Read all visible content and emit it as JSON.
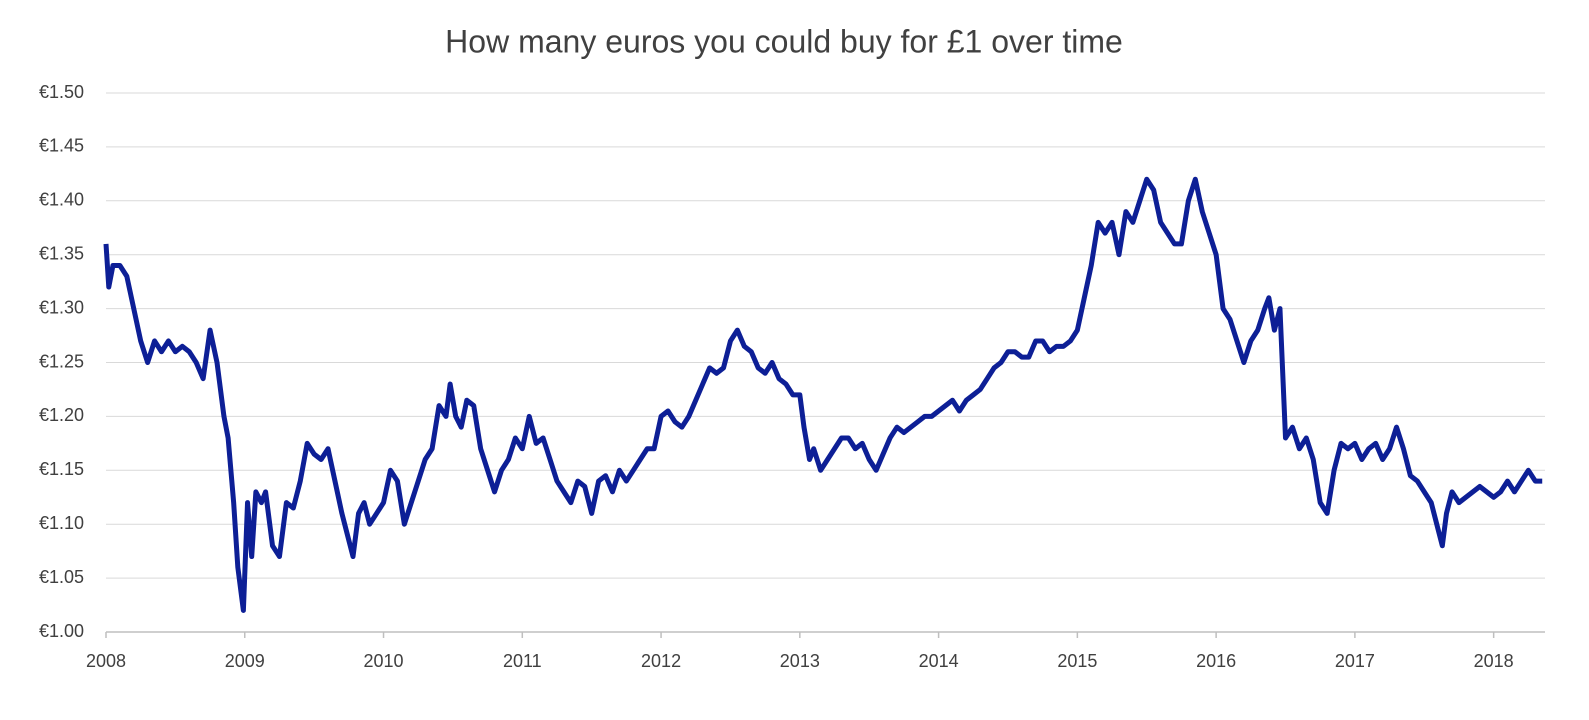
{
  "chart_data": {
    "type": "line",
    "title": "How many euros you could buy for £1 over time",
    "color": "#0d1f96",
    "grid": true,
    "xlim": [
      2008,
      2018.37
    ],
    "xticks": [
      2008,
      2009,
      2010,
      2011,
      2012,
      2013,
      2014,
      2015,
      2016,
      2017,
      2018
    ],
    "ylim": [
      1.0,
      1.5
    ],
    "yticks": [
      {
        "value": 1.0,
        "label": "€1.00"
      },
      {
        "value": 1.05,
        "label": "€1.05"
      },
      {
        "value": 1.1,
        "label": "€1.10"
      },
      {
        "value": 1.15,
        "label": "€1.15"
      },
      {
        "value": 1.2,
        "label": "€1.20"
      },
      {
        "value": 1.25,
        "label": "€1.25"
      },
      {
        "value": 1.3,
        "label": "€1.30"
      },
      {
        "value": 1.35,
        "label": "€1.35"
      },
      {
        "value": 1.4,
        "label": "€1.40"
      },
      {
        "value": 1.45,
        "label": "€1.45"
      },
      {
        "value": 1.5,
        "label": "€1.50"
      }
    ],
    "x": [
      2008.0,
      2008.02,
      2008.05,
      2008.1,
      2008.15,
      2008.2,
      2008.25,
      2008.3,
      2008.35,
      2008.4,
      2008.45,
      2008.5,
      2008.55,
      2008.6,
      2008.65,
      2008.7,
      2008.75,
      2008.8,
      2008.85,
      2008.88,
      2008.92,
      2008.95,
      2008.99,
      2009.02,
      2009.05,
      2009.08,
      2009.12,
      2009.15,
      2009.2,
      2009.25,
      2009.3,
      2009.35,
      2009.4,
      2009.45,
      2009.5,
      2009.55,
      2009.6,
      2009.65,
      2009.7,
      2009.75,
      2009.78,
      2009.82,
      2009.86,
      2009.9,
      2009.95,
      2010.0,
      2010.05,
      2010.1,
      2010.15,
      2010.2,
      2010.25,
      2010.3,
      2010.35,
      2010.4,
      2010.45,
      2010.48,
      2010.52,
      2010.56,
      2010.6,
      2010.65,
      2010.7,
      2010.75,
      2010.8,
      2010.85,
      2010.9,
      2010.95,
      2011.0,
      2011.05,
      2011.1,
      2011.15,
      2011.2,
      2011.25,
      2011.3,
      2011.35,
      2011.4,
      2011.45,
      2011.5,
      2011.55,
      2011.6,
      2011.65,
      2011.7,
      2011.75,
      2011.8,
      2011.85,
      2011.9,
      2011.95,
      2012.0,
      2012.05,
      2012.1,
      2012.15,
      2012.2,
      2012.25,
      2012.3,
      2012.35,
      2012.4,
      2012.45,
      2012.5,
      2012.55,
      2012.6,
      2012.65,
      2012.7,
      2012.75,
      2012.8,
      2012.85,
      2012.9,
      2012.95,
      2013.0,
      2013.03,
      2013.07,
      2013.1,
      2013.15,
      2013.2,
      2013.25,
      2013.3,
      2013.35,
      2013.4,
      2013.45,
      2013.5,
      2013.55,
      2013.6,
      2013.65,
      2013.7,
      2013.75,
      2013.8,
      2013.85,
      2013.9,
      2013.95,
      2014.0,
      2014.05,
      2014.1,
      2014.15,
      2014.2,
      2014.25,
      2014.3,
      2014.35,
      2014.4,
      2014.45,
      2014.5,
      2014.55,
      2014.6,
      2014.65,
      2014.7,
      2014.75,
      2014.8,
      2014.85,
      2014.9,
      2014.95,
      2015.0,
      2015.05,
      2015.1,
      2015.15,
      2015.2,
      2015.25,
      2015.3,
      2015.35,
      2015.4,
      2015.45,
      2015.5,
      2015.55,
      2015.6,
      2015.65,
      2015.7,
      2015.75,
      2015.8,
      2015.85,
      2015.9,
      2015.95,
      2016.0,
      2016.05,
      2016.1,
      2016.15,
      2016.2,
      2016.25,
      2016.3,
      2016.35,
      2016.38,
      2016.42,
      2016.46,
      2016.48,
      2016.5,
      2016.55,
      2016.6,
      2016.65,
      2016.7,
      2016.75,
      2016.8,
      2016.85,
      2016.9,
      2016.95,
      2017.0,
      2017.05,
      2017.1,
      2017.15,
      2017.2,
      2017.25,
      2017.3,
      2017.35,
      2017.4,
      2017.45,
      2017.5,
      2017.55,
      2017.6,
      2017.63,
      2017.66,
      2017.7,
      2017.75,
      2017.8,
      2017.85,
      2017.9,
      2017.95,
      2018.0,
      2018.05,
      2018.1,
      2018.15,
      2018.2,
      2018.25,
      2018.3,
      2018.35
    ],
    "values": [
      1.36,
      1.32,
      1.34,
      1.34,
      1.33,
      1.3,
      1.27,
      1.25,
      1.27,
      1.26,
      1.27,
      1.26,
      1.265,
      1.26,
      1.25,
      1.235,
      1.28,
      1.25,
      1.2,
      1.18,
      1.12,
      1.06,
      1.02,
      1.12,
      1.07,
      1.13,
      1.12,
      1.13,
      1.08,
      1.07,
      1.12,
      1.115,
      1.14,
      1.175,
      1.165,
      1.16,
      1.17,
      1.14,
      1.11,
      1.085,
      1.07,
      1.11,
      1.12,
      1.1,
      1.11,
      1.12,
      1.15,
      1.14,
      1.1,
      1.12,
      1.14,
      1.16,
      1.17,
      1.21,
      1.2,
      1.23,
      1.2,
      1.19,
      1.215,
      1.21,
      1.17,
      1.15,
      1.13,
      1.15,
      1.16,
      1.18,
      1.17,
      1.2,
      1.175,
      1.18,
      1.16,
      1.14,
      1.13,
      1.12,
      1.14,
      1.135,
      1.11,
      1.14,
      1.145,
      1.13,
      1.15,
      1.14,
      1.15,
      1.16,
      1.17,
      1.17,
      1.2,
      1.205,
      1.195,
      1.19,
      1.2,
      1.215,
      1.23,
      1.245,
      1.24,
      1.245,
      1.27,
      1.28,
      1.265,
      1.26,
      1.245,
      1.24,
      1.25,
      1.235,
      1.23,
      1.22,
      1.22,
      1.19,
      1.16,
      1.17,
      1.15,
      1.16,
      1.17,
      1.18,
      1.18,
      1.17,
      1.175,
      1.16,
      1.15,
      1.165,
      1.18,
      1.19,
      1.185,
      1.19,
      1.195,
      1.2,
      1.2,
      1.205,
      1.21,
      1.215,
      1.205,
      1.215,
      1.22,
      1.225,
      1.235,
      1.245,
      1.25,
      1.26,
      1.26,
      1.255,
      1.255,
      1.27,
      1.27,
      1.26,
      1.265,
      1.265,
      1.27,
      1.28,
      1.31,
      1.34,
      1.38,
      1.37,
      1.38,
      1.35,
      1.39,
      1.38,
      1.4,
      1.42,
      1.41,
      1.38,
      1.37,
      1.36,
      1.36,
      1.4,
      1.42,
      1.39,
      1.37,
      1.35,
      1.3,
      1.29,
      1.27,
      1.25,
      1.27,
      1.28,
      1.3,
      1.31,
      1.28,
      1.3,
      1.24,
      1.18,
      1.19,
      1.17,
      1.18,
      1.16,
      1.12,
      1.11,
      1.15,
      1.175,
      1.17,
      1.175,
      1.16,
      1.17,
      1.175,
      1.16,
      1.17,
      1.19,
      1.17,
      1.145,
      1.14,
      1.13,
      1.12,
      1.095,
      1.08,
      1.11,
      1.13,
      1.12,
      1.125,
      1.13,
      1.135,
      1.13,
      1.125,
      1.13,
      1.14,
      1.13,
      1.14,
      1.15,
      1.14,
      1.14
    ]
  }
}
